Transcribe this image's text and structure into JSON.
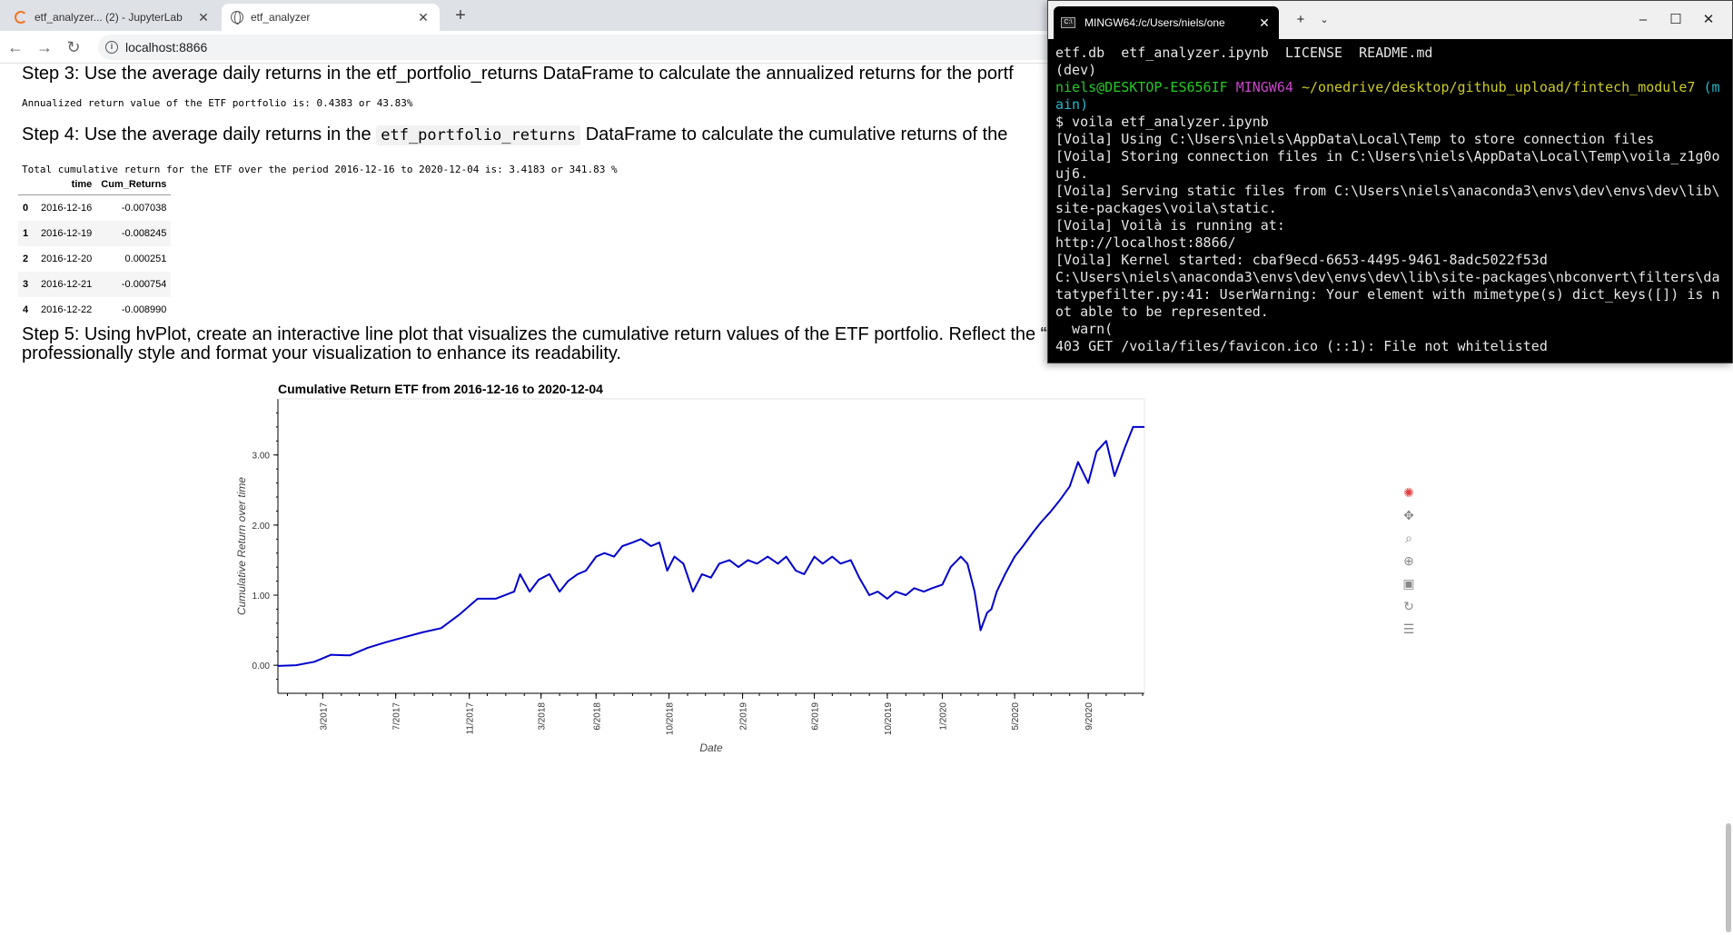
{
  "browser": {
    "tabs": [
      {
        "label": "etf_analyzer... (2) - JupyterLab",
        "icon": "jupyter-icon"
      },
      {
        "label": "etf_analyzer",
        "icon": "globe-icon"
      }
    ],
    "new_tab": "+",
    "close_glyph": "✕",
    "url": "localhost:8866"
  },
  "page": {
    "step3": "Step 3: Use the average daily returns in the etf_portfolio_returns DataFrame to calculate the annualized returns for the portf",
    "annualized": "Annualized return value of the ETF portfolio is: 0.4383 or 43.83%",
    "step4_pre": "Step 4: Use the average daily returns in the ",
    "step4_code": "etf_portfolio_returns",
    "step4_post": " DataFrame to calculate the cumulative returns of the",
    "cumulative": "Total cumulative return for the ETF over the period 2016-12-16 to 2020-12-04 is: 3.4183 or 341.83 %",
    "table": {
      "headers": [
        "",
        "time",
        "Cum_Returns"
      ],
      "rows": [
        [
          "0",
          "2016-12-16",
          "-0.007038"
        ],
        [
          "1",
          "2016-12-19",
          "-0.008245"
        ],
        [
          "2",
          "2016-12-20",
          "0.000251"
        ],
        [
          "3",
          "2016-12-21",
          "-0.000754"
        ],
        [
          "4",
          "2016-12-22",
          "-0.008990"
        ]
      ]
    },
    "step5": "Step 5: Using hvPlot, create an interactive line plot that visualizes the cumulative return values of the ETF portfolio. Reflect the “time” column of the DataFrame on the x-axis. Make sure that you professionally style and format your visualization to enhance its readability."
  },
  "chart_data": {
    "type": "line",
    "title": "Cumulative Return ETF from 2016-12-16 to 2020-12-04",
    "xlabel": "Date",
    "ylabel": "Cumulative Return over time",
    "x_ticks": [
      "3/2017",
      "7/2017",
      "11/2017",
      "3/2018",
      "6/2018",
      "10/2018",
      "2/2019",
      "6/2019",
      "10/2019",
      "1/2020",
      "5/2020",
      "9/2020"
    ],
    "y_ticks": [
      "0.00",
      "1.00",
      "2.00",
      "3.00"
    ],
    "ylim": [
      -0.4,
      3.8
    ],
    "xlim": [
      "2016-12-16",
      "2020-12-04"
    ],
    "color": "#0000cc",
    "grid": false,
    "series": [
      {
        "x": [
          "2016-12-16",
          "2017-01-15",
          "2017-02-15",
          "2017-03-15",
          "2017-04-15",
          "2017-05-15",
          "2017-06-15",
          "2017-07-15",
          "2017-08-15",
          "2017-09-15",
          "2017-10-15",
          "2017-11-15",
          "2017-12-15",
          "2018-01-15",
          "2018-01-25",
          "2018-02-10",
          "2018-02-25",
          "2018-03-15",
          "2018-04-01",
          "2018-04-15",
          "2018-05-01",
          "2018-05-15",
          "2018-06-01",
          "2018-06-15",
          "2018-07-01",
          "2018-07-15",
          "2018-08-01",
          "2018-08-15",
          "2018-09-01",
          "2018-09-15",
          "2018-09-28",
          "2018-10-10",
          "2018-10-25",
          "2018-11-10",
          "2018-11-25",
          "2018-12-10",
          "2018-12-24",
          "2019-01-10",
          "2019-01-25",
          "2019-02-10",
          "2019-02-25",
          "2019-03-15",
          "2019-04-01",
          "2019-04-15",
          "2019-05-01",
          "2019-05-15",
          "2019-06-01",
          "2019-06-15",
          "2019-07-01",
          "2019-07-15",
          "2019-08-01",
          "2019-08-15",
          "2019-09-01",
          "2019-09-15",
          "2019-10-01",
          "2019-10-15",
          "2019-11-01",
          "2019-11-15",
          "2019-12-01",
          "2019-12-15",
          "2020-01-01",
          "2020-01-15",
          "2020-02-01",
          "2020-02-12",
          "2020-02-24",
          "2020-03-05",
          "2020-03-16",
          "2020-03-23",
          "2020-04-01",
          "2020-04-15",
          "2020-05-01",
          "2020-05-15",
          "2020-06-01",
          "2020-06-15",
          "2020-07-01",
          "2020-07-15",
          "2020-08-01",
          "2020-08-15",
          "2020-09-01",
          "2020-09-15",
          "2020-10-01",
          "2020-10-15",
          "2020-11-01",
          "2020-11-15",
          "2020-12-04"
        ],
        "values": [
          -0.01,
          0.0,
          0.05,
          0.15,
          0.14,
          0.25,
          0.33,
          0.4,
          0.47,
          0.53,
          0.72,
          0.95,
          0.95,
          1.05,
          1.3,
          1.05,
          1.22,
          1.3,
          1.05,
          1.2,
          1.3,
          1.35,
          1.55,
          1.6,
          1.55,
          1.7,
          1.75,
          1.8,
          1.7,
          1.75,
          1.35,
          1.55,
          1.45,
          1.05,
          1.3,
          1.25,
          1.45,
          1.5,
          1.4,
          1.5,
          1.45,
          1.55,
          1.45,
          1.55,
          1.35,
          1.3,
          1.55,
          1.45,
          1.55,
          1.45,
          1.5,
          1.25,
          1.0,
          1.05,
          0.95,
          1.05,
          1.0,
          1.1,
          1.05,
          1.1,
          1.15,
          1.4,
          1.55,
          1.45,
          1.05,
          0.5,
          0.75,
          0.8,
          1.05,
          1.3,
          1.55,
          1.7,
          1.9,
          2.05,
          2.2,
          2.35,
          2.55,
          2.9,
          2.6,
          3.05,
          3.2,
          2.7,
          3.1,
          3.4,
          3.4
        ]
      }
    ]
  }
}
